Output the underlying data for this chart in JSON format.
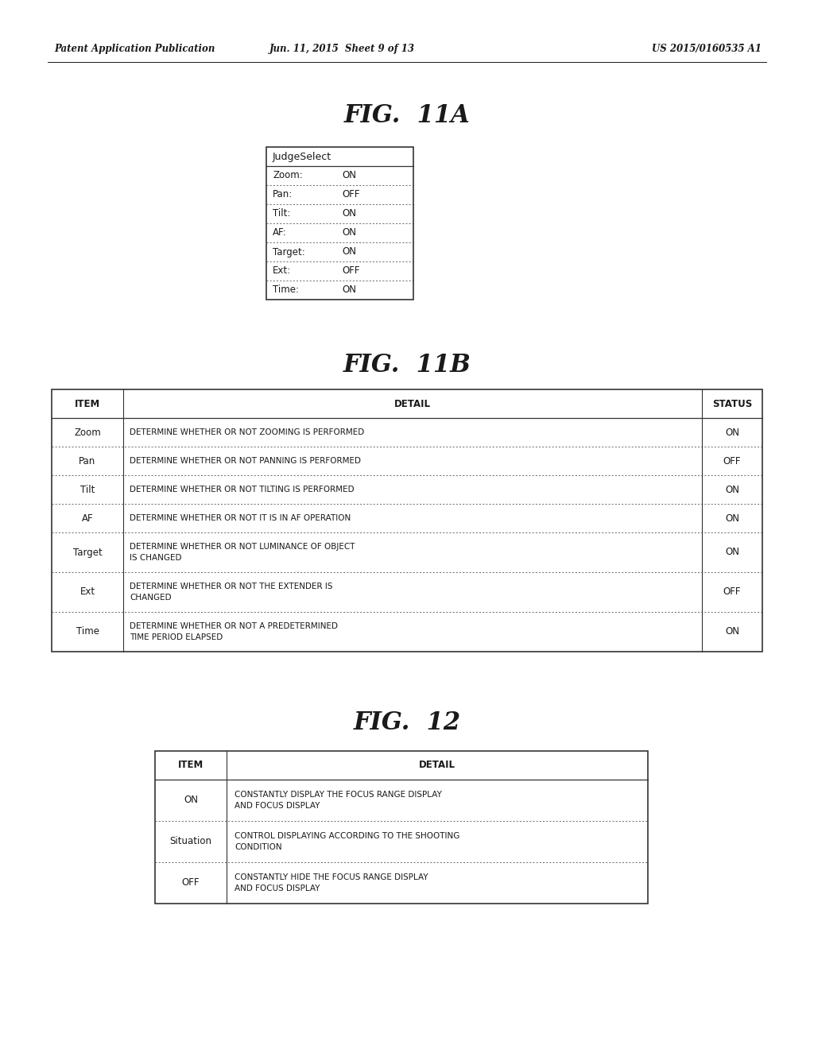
{
  "header_left": "Patent Application Publication",
  "header_center": "Jun. 11, 2015  Sheet 9 of 13",
  "header_right": "US 2015/0160535 A1",
  "fig11a_title": "FIG.  11A",
  "fig11a_header": "JudgeSelect",
  "fig11a_rows": [
    [
      "Zoom:",
      "ON"
    ],
    [
      "Pan:",
      "OFF"
    ],
    [
      "Tilt:",
      "ON"
    ],
    [
      "AF:",
      "ON"
    ],
    [
      "Target:",
      "ON"
    ],
    [
      "Ext:",
      "OFF"
    ],
    [
      "Time:",
      "ON"
    ]
  ],
  "fig11b_title": "FIG.  11B",
  "fig11b_headers": [
    "ITEM",
    "DETAIL",
    "STATUS"
  ],
  "fig11b_rows": [
    [
      "Zoom",
      "DETERMINE WHETHER OR NOT ZOOMING IS PERFORMED",
      "ON"
    ],
    [
      "Pan",
      "DETERMINE WHETHER OR NOT PANNING IS PERFORMED",
      "OFF"
    ],
    [
      "Tilt",
      "DETERMINE WHETHER OR NOT TILTING IS PERFORMED",
      "ON"
    ],
    [
      "AF",
      "DETERMINE WHETHER OR NOT IT IS IN AF OPERATION",
      "ON"
    ],
    [
      "Target",
      "DETERMINE WHETHER OR NOT LUMINANCE OF OBJECT\nIS CHANGED",
      "ON"
    ],
    [
      "Ext",
      "DETERMINE WHETHER OR NOT THE EXTENDER IS\nCHANGED",
      "OFF"
    ],
    [
      "Time",
      "DETERMINE WHETHER OR NOT A PREDETERMINED\nTIME PERIOD ELAPSED",
      "ON"
    ]
  ],
  "fig12_title": "FIG.  12",
  "fig12_headers": [
    "ITEM",
    "DETAIL"
  ],
  "fig12_rows": [
    [
      "ON",
      "CONSTANTLY DISPLAY THE FOCUS RANGE DISPLAY\nAND FOCUS DISPLAY"
    ],
    [
      "Situation",
      "CONTROL DISPLAYING ACCORDING TO THE SHOOTING\nCONDITION"
    ],
    [
      "OFF",
      "CONSTANTLY HIDE THE FOCUS RANGE DISPLAY\nAND FOCUS DISPLAY"
    ]
  ],
  "bg_color": "#ffffff",
  "text_color": "#1a1a1a",
  "border_color": "#333333",
  "header_fontsize": 8.5,
  "title_fontsize": 22,
  "table_fontsize": 8
}
